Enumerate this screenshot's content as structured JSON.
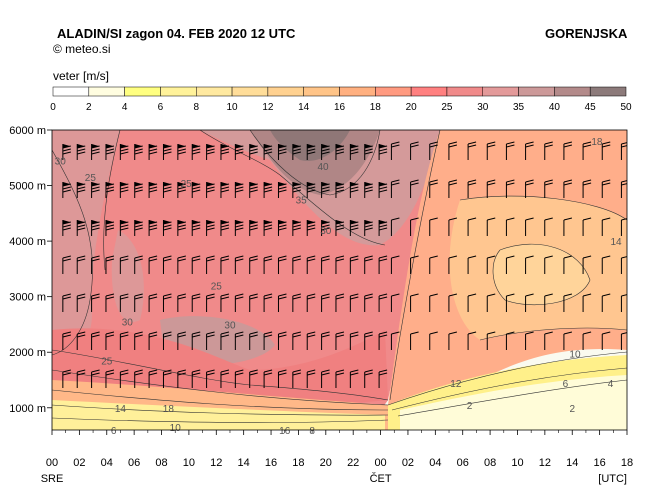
{
  "header": {
    "title": "ALADIN/SI  zagon 04. FEB 2020 12 UTC",
    "copyright": "©  meteo.si",
    "region": "GORENJSKA"
  },
  "chart_data": {
    "type": "heatmap",
    "legend_label": "veter [m/s]",
    "legend_levels": [
      "0",
      "2",
      "4",
      "6",
      "8",
      "10",
      "12",
      "14",
      "16",
      "18",
      "20",
      "25",
      "30",
      "35",
      "40",
      "45",
      "50"
    ],
    "legend_colors": [
      "#ffffff",
      "#fffde0",
      "#ffff80",
      "#fff29a",
      "#ffe9a0",
      "#ffdd99",
      "#ffd190",
      "#ffc488",
      "#ffb080",
      "#ff9a80",
      "#ff8080",
      "#f08a8a",
      "#e39a9a",
      "#cc9999",
      "#b38a8a",
      "#8c7a7a"
    ],
    "y_ticks": [
      "6000 m",
      "5000 m",
      "4000 m",
      "3000 m",
      "2000 m",
      "1000 m"
    ],
    "y_values": [
      6000,
      5000,
      4000,
      3000,
      2000,
      1000
    ],
    "ylim": [
      600,
      6000
    ],
    "x_ticks": [
      "00",
      "02",
      "04",
      "06",
      "08",
      "10",
      "12",
      "14",
      "16",
      "18",
      "20",
      "22",
      "00",
      "02",
      "04",
      "06",
      "08",
      "10",
      "12",
      "14",
      "16",
      "18"
    ],
    "x_day_labels": [
      {
        "label": "SRE",
        "at": 0
      },
      {
        "label": "ČET",
        "at": 24
      }
    ],
    "x_unit": "[UTC]",
    "xlim": [
      0,
      42
    ],
    "contour_labels": [
      {
        "t": "30",
        "x": 0.6,
        "y": 5450
      },
      {
        "t": "25",
        "x": 2.8,
        "y": 5150
      },
      {
        "t": "25",
        "x": 9.8,
        "y": 5050
      },
      {
        "t": "40",
        "x": 19.8,
        "y": 5350
      },
      {
        "t": "35",
        "x": 18.2,
        "y": 4750
      },
      {
        "t": "30",
        "x": 20.0,
        "y": 4200
      },
      {
        "t": "25",
        "x": 12.0,
        "y": 3200
      },
      {
        "t": "30",
        "x": 5.5,
        "y": 2550
      },
      {
        "t": "30",
        "x": 13.0,
        "y": 2500
      },
      {
        "t": "25",
        "x": 4.0,
        "y": 1850
      },
      {
        "t": "14",
        "x": 5.0,
        "y": 1000
      },
      {
        "t": "18",
        "x": 8.5,
        "y": 1000
      },
      {
        "t": "10",
        "x": 9.0,
        "y": 650
      },
      {
        "t": "6",
        "x": 4.5,
        "y": 600
      },
      {
        "t": "16",
        "x": 17.0,
        "y": 600
      },
      {
        "t": "8",
        "x": 19.0,
        "y": 600
      },
      {
        "t": "18",
        "x": 39.8,
        "y": 5800
      },
      {
        "t": "14",
        "x": 41.2,
        "y": 4000
      },
      {
        "t": "10",
        "x": 38.2,
        "y": 1980
      },
      {
        "t": "12",
        "x": 29.5,
        "y": 1450
      },
      {
        "t": "6",
        "x": 37.5,
        "y": 1450
      },
      {
        "t": "4",
        "x": 40.8,
        "y": 1450
      },
      {
        "t": "2",
        "x": 30.5,
        "y": 1050
      },
      {
        "t": "2",
        "x": 38.0,
        "y": 1000
      }
    ]
  }
}
